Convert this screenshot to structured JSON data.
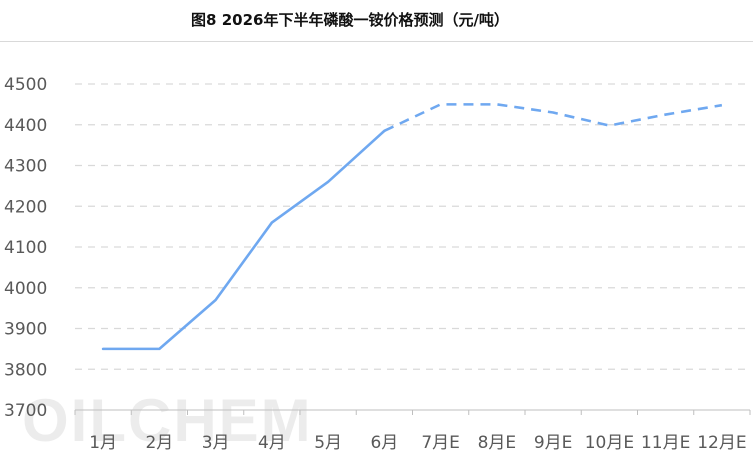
{
  "title": "图8 2026年下半年磷酸一铵价格预测（元/吨）",
  "watermark": "OILCHEM",
  "chart_data": {
    "type": "line",
    "categories": [
      "1月",
      "2月",
      "3月",
      "4月",
      "5月",
      "6月",
      "7月E",
      "8月E",
      "9月E",
      "10月E",
      "11月E",
      "12月E"
    ],
    "values": [
      3850,
      3850,
      3970,
      4160,
      4260,
      4385,
      4450,
      4450,
      4430,
      4398,
      4425,
      4448
    ],
    "actual_count": 6,
    "ylim": [
      3700,
      4500
    ],
    "yticks": [
      3700,
      3800,
      3900,
      4000,
      4100,
      4200,
      4300,
      4400,
      4500
    ],
    "grid": true,
    "line_color": "#6fa8f0",
    "forecast_style": "dashed",
    "xlabel": "",
    "ylabel": ""
  }
}
